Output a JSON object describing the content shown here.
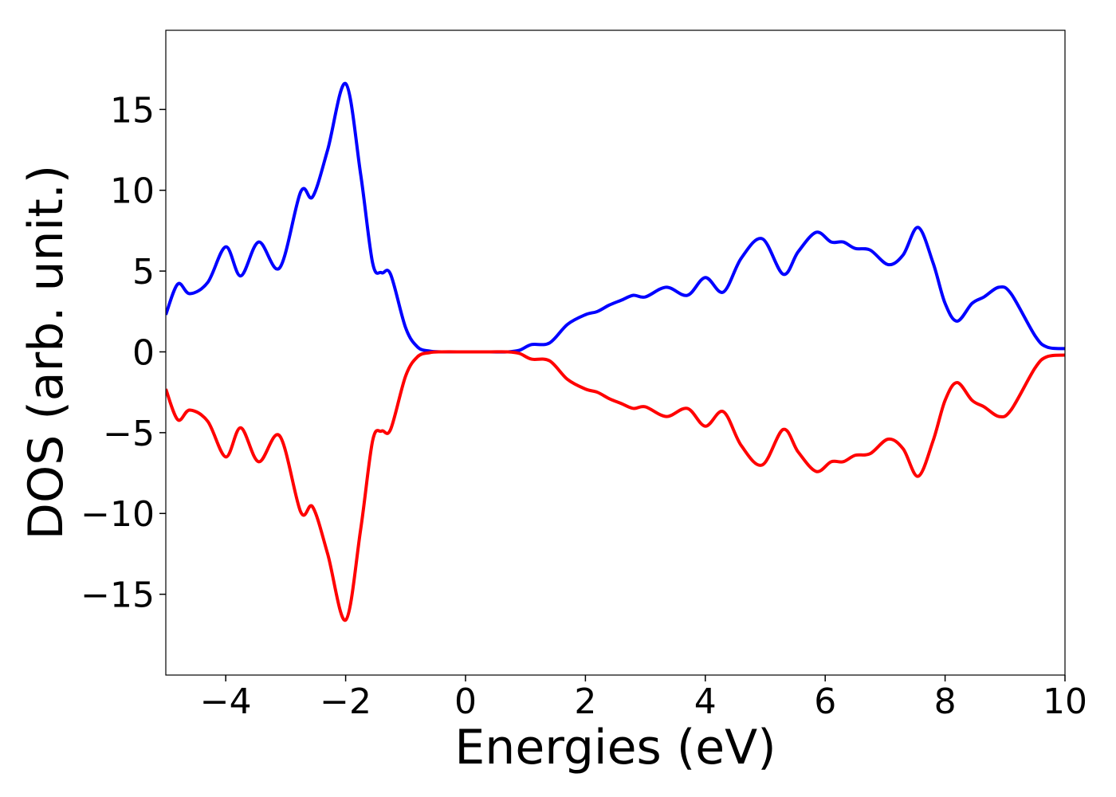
{
  "chart_data": {
    "type": "line",
    "xlabel": "Energies (eV)",
    "ylabel": "DOS (arb. unit.)",
    "x": [
      -5,
      -4.8,
      -4.6,
      -4.3,
      -4.0,
      -3.75,
      -3.45,
      -3.1,
      -2.75,
      -2.55,
      -2.3,
      -2.0,
      -1.75,
      -1.55,
      -1.4,
      -1.25,
      -1.0,
      -0.8,
      -0.6,
      -0.4,
      0,
      0.4,
      0.7,
      0.9,
      1.1,
      1.4,
      1.7,
      2.0,
      2.2,
      2.4,
      2.6,
      2.8,
      3.0,
      3.35,
      3.7,
      4.0,
      4.3,
      4.6,
      4.95,
      5.3,
      5.55,
      5.85,
      6.1,
      6.3,
      6.5,
      6.75,
      7.05,
      7.3,
      7.55,
      7.8,
      8.0,
      8.2,
      8.45,
      8.65,
      8.9,
      9.1,
      9.5,
      9.7,
      10
    ],
    "series": [
      {
        "color": "#0000ff",
        "values": [
          2.3,
          4.2,
          3.6,
          4.3,
          6.5,
          4.7,
          6.8,
          5.2,
          9.9,
          9.6,
          12.5,
          16.6,
          11,
          5.5,
          4.9,
          4.8,
          1.5,
          0.3,
          0.05,
          0,
          0,
          0,
          0,
          0.1,
          0.45,
          0.55,
          1.7,
          2.3,
          2.5,
          2.9,
          3.2,
          3.5,
          3.4,
          4.0,
          3.5,
          4.6,
          3.7,
          5.8,
          7.0,
          4.8,
          6.2,
          7.4,
          6.8,
          6.8,
          6.4,
          6.3,
          5.4,
          6.0,
          7.7,
          5.5,
          3.0,
          1.9,
          3.0,
          3.4,
          4.0,
          3.6,
          1.0,
          0.3,
          0.2
        ]
      },
      {
        "color": "#ff0000",
        "values": [
          -2.3,
          -4.2,
          -3.6,
          -4.3,
          -6.5,
          -4.7,
          -6.8,
          -5.2,
          -9.9,
          -9.6,
          -12.5,
          -16.6,
          -11,
          -5.5,
          -4.9,
          -4.8,
          -1.5,
          -0.3,
          -0.05,
          0,
          0,
          0,
          0,
          -0.1,
          -0.45,
          -0.55,
          -1.7,
          -2.3,
          -2.5,
          -2.9,
          -3.2,
          -3.5,
          -3.4,
          -4.0,
          -3.5,
          -4.6,
          -3.7,
          -5.8,
          -7.0,
          -4.8,
          -6.2,
          -7.4,
          -6.8,
          -6.8,
          -6.4,
          -6.3,
          -5.4,
          -6.0,
          -7.7,
          -5.5,
          -3.0,
          -1.9,
          -3.0,
          -3.4,
          -4.0,
          -3.6,
          -1.0,
          -0.3,
          -0.2
        ]
      }
    ],
    "xlim": [
      -5,
      10
    ],
    "ylim": [
      -20,
      19.9
    ],
    "xticks": [
      {
        "value": -4,
        "label": "−4"
      },
      {
        "value": -2,
        "label": "−2"
      },
      0,
      2,
      4,
      6,
      8,
      10
    ],
    "yticks": [
      {
        "value": -15,
        "label": "−15"
      },
      {
        "value": -10,
        "label": "−10"
      },
      {
        "value": -5,
        "label": "−5"
      },
      0,
      5,
      10,
      15
    ]
  }
}
